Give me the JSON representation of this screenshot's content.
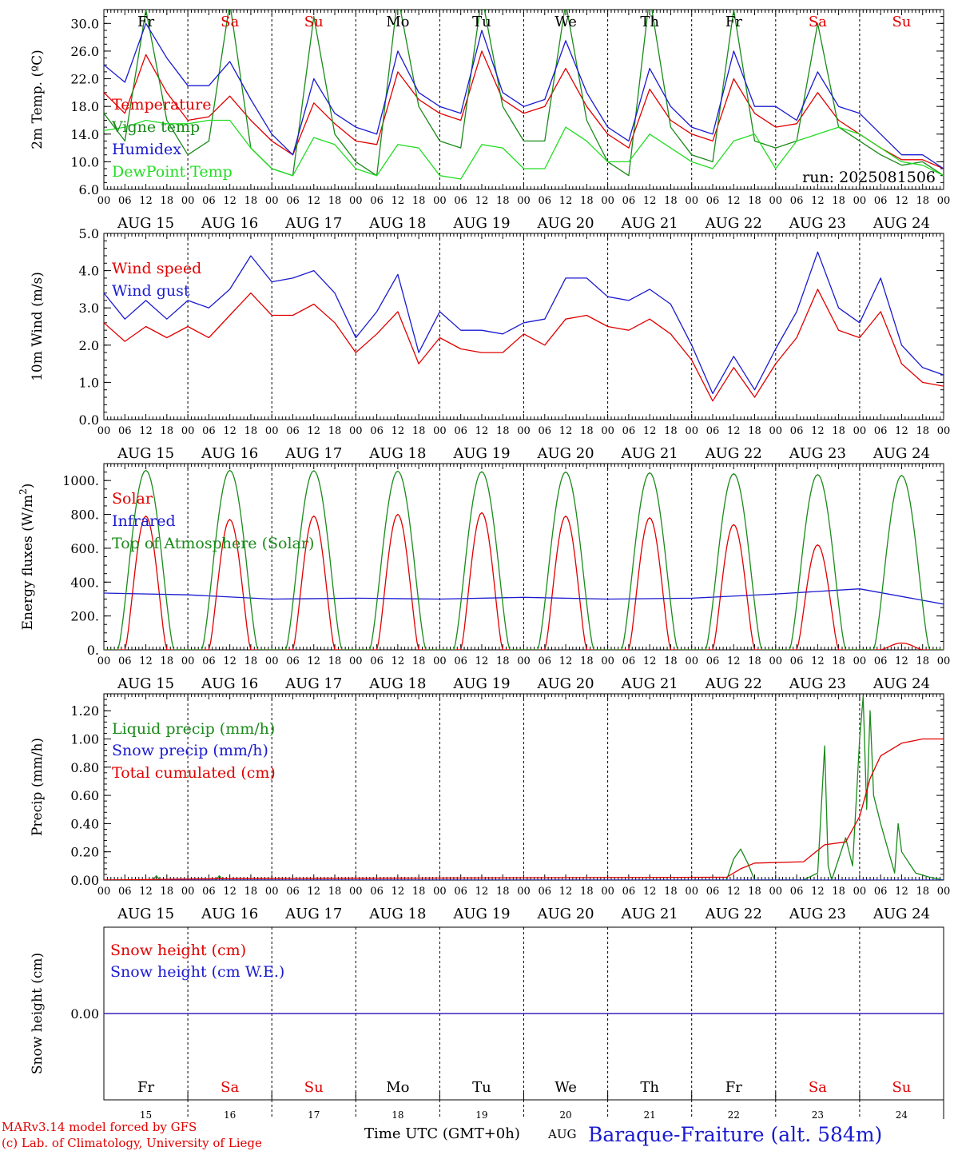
{
  "days": [
    "AUG 15",
    "AUG 16",
    "AUG 17",
    "AUG 18",
    "AUG 19",
    "AUG 20",
    "AUG 21",
    "AUG 22",
    "AUG 23",
    "AUG 24"
  ],
  "weekdays": [
    "Fr",
    "Sa",
    "Su",
    "Mo",
    "Tu",
    "We",
    "Th",
    "Fr",
    "Sa",
    "Su"
  ],
  "weekday_colors": [
    "#000000",
    "#e00000",
    "#e00000",
    "#000000",
    "#000000",
    "#000000",
    "#000000",
    "#000000",
    "#e00000",
    "#e00000"
  ],
  "day_numbers": [
    "15",
    "16",
    "17",
    "18",
    "19",
    "20",
    "21",
    "22",
    "23",
    "24"
  ],
  "hour_ticks": [
    "00",
    "06",
    "12",
    "18"
  ],
  "final_hour_tick": "00",
  "colors": {
    "red": "#e00000",
    "green": "#1a8a1a",
    "blue": "#1a1ad0",
    "lightgreen": "#22dd22"
  },
  "panels": {
    "temp": {
      "ylabel": "2m Temp. (ºC)",
      "run_label": "run: 2025081506",
      "ticks": [
        "30.0",
        "26.0",
        "22.0",
        "18.0",
        "14.0",
        "10.0",
        "6.0"
      ]
    },
    "wind": {
      "ylabel": "10m Wind (m/s)",
      "ticks": [
        "5.0",
        "4.0",
        "3.0",
        "2.0",
        "1.0",
        "0.0"
      ]
    },
    "energy": {
      "ylabel_main": "Energy fluxes (W/m",
      "ylabel_sup": "2",
      "ylabel_end": ")",
      "ticks": [
        "1000.",
        "800.",
        "600.",
        "400.",
        "200.",
        "0."
      ]
    },
    "precip": {
      "ylabel": "Precip (mm/h)",
      "ticks": [
        "1.20",
        "1.00",
        "0.80",
        "0.60",
        "0.40",
        "0.20",
        "0.00"
      ]
    },
    "snow": {
      "ylabel": "Snow height (cm)",
      "ticks": [
        "0.00"
      ]
    }
  },
  "footer": {
    "model": "MARv3.14 model forced by GFS",
    "lab": "(c) Lab. of Climatology, University of Liege",
    "time_label": "Time UTC (GMT+0h)",
    "month": "AUG",
    "station": "Baraque-Fraiture (alt. 584m)"
  },
  "chart_data": [
    {
      "type": "line",
      "ylabel": "2m Temp. (ºC)",
      "ylim": [
        6,
        32
      ],
      "x_unit": "hours since 2025-08-15 00 UTC",
      "series": [
        {
          "name": "Temperature",
          "color": "#e00000",
          "x": [
            0,
            6,
            12,
            18,
            24,
            30,
            36,
            42,
            48,
            54,
            60,
            66,
            72,
            78,
            84,
            90,
            96,
            102,
            108,
            114,
            120,
            126,
            132,
            138,
            144,
            150,
            156,
            162,
            168,
            174,
            180,
            186,
            192,
            198,
            204,
            210,
            216,
            222,
            228,
            234,
            240
          ],
          "y": [
            20,
            17,
            25.5,
            20,
            16,
            16.5,
            19.5,
            16,
            13,
            11,
            18.5,
            15.5,
            13,
            12.5,
            23,
            19,
            17,
            16,
            26,
            19,
            17,
            18,
            23.5,
            18,
            14,
            12,
            20.5,
            16,
            14,
            13,
            22,
            17,
            15,
            15.5,
            20,
            16,
            14,
            12,
            10.3,
            10.3,
            9
          ]
        },
        {
          "name": "Vigne temp",
          "color": "#1a8a1a",
          "x": [
            0,
            6,
            12,
            18,
            24,
            30,
            36,
            42,
            48,
            54,
            60,
            66,
            72,
            78,
            84,
            90,
            96,
            102,
            108,
            114,
            120,
            126,
            132,
            138,
            144,
            150,
            156,
            162,
            168,
            174,
            180,
            186,
            192,
            198,
            204,
            210,
            216,
            222,
            228,
            234,
            240
          ],
          "y": [
            17,
            13,
            32,
            16,
            11,
            13,
            33,
            12,
            9,
            8,
            31,
            14,
            10,
            8,
            34,
            18,
            13,
            12,
            34,
            18,
            13,
            13,
            33,
            16,
            10,
            8,
            34,
            15,
            11,
            10,
            32,
            13,
            12,
            13,
            30,
            15,
            13,
            11,
            9.5,
            10,
            8
          ]
        },
        {
          "name": "Humidex",
          "color": "#1a1ad0",
          "x": [
            0,
            6,
            12,
            18,
            24,
            30,
            36,
            42,
            48,
            54,
            60,
            66,
            72,
            78,
            84,
            90,
            96,
            102,
            108,
            114,
            120,
            126,
            132,
            138,
            144,
            150,
            156,
            162,
            168,
            174,
            180,
            186,
            192,
            198,
            204,
            210,
            216,
            222,
            228,
            234,
            240
          ],
          "y": [
            24,
            21.5,
            30,
            25,
            21,
            21,
            24.5,
            19,
            14,
            11,
            22,
            17,
            15,
            14,
            26,
            20,
            18,
            17,
            29,
            20,
            18,
            19,
            27.5,
            20,
            15,
            13,
            23.5,
            18,
            15,
            14,
            26,
            18,
            18,
            16,
            23,
            18,
            17,
            14,
            11,
            11,
            9
          ]
        },
        {
          "name": "DewPoint Temp",
          "color": "#22dd22",
          "x": [
            0,
            6,
            12,
            18,
            24,
            30,
            36,
            42,
            48,
            54,
            60,
            66,
            72,
            78,
            84,
            90,
            96,
            102,
            108,
            114,
            120,
            126,
            132,
            138,
            144,
            150,
            156,
            162,
            168,
            174,
            180,
            186,
            192,
            198,
            204,
            210,
            216,
            222,
            228,
            234,
            240
          ],
          "y": [
            14.5,
            15,
            16,
            15.5,
            15.5,
            16,
            16,
            12,
            9,
            8,
            13.5,
            12.5,
            9,
            8,
            12.5,
            12,
            8,
            7.5,
            12.5,
            12,
            9,
            9,
            15,
            13,
            10,
            10,
            14,
            12,
            10,
            9,
            13,
            14,
            9,
            13,
            14,
            15,
            14,
            12,
            10,
            9.5,
            8
          ]
        }
      ]
    },
    {
      "type": "line",
      "ylabel": "10m Wind (m/s)",
      "ylim": [
        0,
        5
      ],
      "x_unit": "hours since 2025-08-15 00 UTC",
      "series": [
        {
          "name": "Wind speed",
          "color": "#e00000",
          "x": [
            0,
            6,
            12,
            18,
            24,
            30,
            36,
            42,
            48,
            54,
            60,
            66,
            72,
            78,
            84,
            90,
            96,
            102,
            108,
            114,
            120,
            126,
            132,
            138,
            144,
            150,
            156,
            162,
            168,
            174,
            180,
            186,
            192,
            198,
            204,
            210,
            216,
            222,
            228,
            234,
            240
          ],
          "y": [
            2.6,
            2.1,
            2.5,
            2.2,
            2.5,
            2.2,
            2.8,
            3.4,
            2.8,
            2.8,
            3.1,
            2.6,
            1.8,
            2.3,
            2.9,
            1.5,
            2.2,
            1.9,
            1.8,
            1.8,
            2.3,
            2.0,
            2.7,
            2.8,
            2.5,
            2.4,
            2.7,
            2.3,
            1.6,
            0.5,
            1.4,
            0.6,
            1.5,
            2.2,
            3.5,
            2.4,
            2.2,
            2.9,
            1.5,
            1.0,
            0.9
          ]
        },
        {
          "name": "Wind gust",
          "color": "#1a1ad0",
          "x": [
            0,
            6,
            12,
            18,
            24,
            30,
            36,
            42,
            48,
            54,
            60,
            66,
            72,
            78,
            84,
            90,
            96,
            102,
            108,
            114,
            120,
            126,
            132,
            138,
            144,
            150,
            156,
            162,
            168,
            174,
            180,
            186,
            192,
            198,
            204,
            210,
            216,
            222,
            228,
            234,
            240
          ],
          "y": [
            3.4,
            2.7,
            3.2,
            2.7,
            3.2,
            3.0,
            3.5,
            4.4,
            3.7,
            3.8,
            4.0,
            3.4,
            2.2,
            2.9,
            3.9,
            1.8,
            2.9,
            2.4,
            2.4,
            2.3,
            2.6,
            2.7,
            3.8,
            3.8,
            3.3,
            3.2,
            3.5,
            3.1,
            2.0,
            0.7,
            1.7,
            0.8,
            1.9,
            2.9,
            4.5,
            3.0,
            2.6,
            3.8,
            2.0,
            1.4,
            1.2
          ]
        }
      ]
    },
    {
      "type": "line",
      "ylabel": "Energy fluxes (W/m2)",
      "ylim": [
        0,
        1100
      ],
      "x_unit": "hours since 2025-08-15 00 UTC",
      "series": [
        {
          "name": "Solar",
          "color": "#e00000",
          "peak_hour": [
            12,
            36,
            60,
            84,
            108,
            132,
            156,
            180,
            204,
            228
          ],
          "peak": [
            790,
            770,
            790,
            800,
            810,
            790,
            780,
            740,
            620,
            40
          ]
        },
        {
          "name": "Infrared",
          "color": "#1a1ad0",
          "x": [
            0,
            24,
            48,
            72,
            96,
            120,
            144,
            168,
            192,
            216,
            240
          ],
          "y": [
            335,
            325,
            300,
            305,
            300,
            310,
            300,
            305,
            330,
            360,
            270
          ]
        },
        {
          "name": "Top of Atmosphere (Solar)",
          "color": "#1a8a1a",
          "peak_hour": [
            12,
            36,
            60,
            84,
            108,
            132,
            156,
            180,
            204,
            228
          ],
          "peak": [
            1060,
            1060,
            1058,
            1055,
            1052,
            1050,
            1045,
            1040,
            1035,
            1030
          ]
        }
      ]
    },
    {
      "type": "line",
      "ylabel": "Precip (mm/h)",
      "ylim": [
        0,
        1.3
      ],
      "x_unit": "hours since 2025-08-15 00 UTC",
      "series": [
        {
          "name": "Liquid precip (mm/h)",
          "color": "#1a8a1a",
          "x": [
            0,
            14,
            15,
            16,
            32,
            33,
            34,
            178,
            180,
            182,
            184,
            186,
            200,
            204,
            206,
            207,
            208,
            212,
            214,
            216,
            217,
            218,
            219,
            220,
            222,
            226,
            227,
            228,
            232,
            236,
            240
          ],
          "y": [
            0,
            0,
            0.03,
            0,
            0,
            0.03,
            0,
            0,
            0.15,
            0.22,
            0.12,
            0,
            0,
            0.05,
            0.95,
            0.1,
            0,
            0.3,
            0.1,
            1.0,
            1.3,
            0.5,
            1.2,
            0.6,
            0.4,
            0.05,
            0.4,
            0.2,
            0.05,
            0.02,
            0
          ]
        },
        {
          "name": "Snow precip (mm/h)",
          "color": "#1a1ad0",
          "x": [
            0,
            240
          ],
          "y": [
            0,
            0
          ]
        },
        {
          "name": "Total cumulated (cm)",
          "color": "#e00000",
          "x": [
            0,
            35,
            178,
            182,
            186,
            200,
            206,
            212,
            216,
            219,
            222,
            228,
            234,
            240
          ],
          "y": [
            0,
            0.01,
            0.02,
            0.08,
            0.12,
            0.13,
            0.25,
            0.27,
            0.45,
            0.72,
            0.88,
            0.97,
            1.0,
            1.0
          ]
        }
      ]
    },
    {
      "type": "line",
      "ylabel": "Snow height (cm)",
      "x_unit": "hours since 2025-08-15 00 UTC",
      "series": [
        {
          "name": "Snow height (cm)",
          "color": "#e00000",
          "x": [
            0,
            240
          ],
          "y": [
            0,
            0
          ]
        },
        {
          "name": "Snow height (cm W.E.)",
          "color": "#1a1ad0",
          "x": [
            0,
            240
          ],
          "y": [
            0,
            0
          ]
        }
      ]
    }
  ]
}
